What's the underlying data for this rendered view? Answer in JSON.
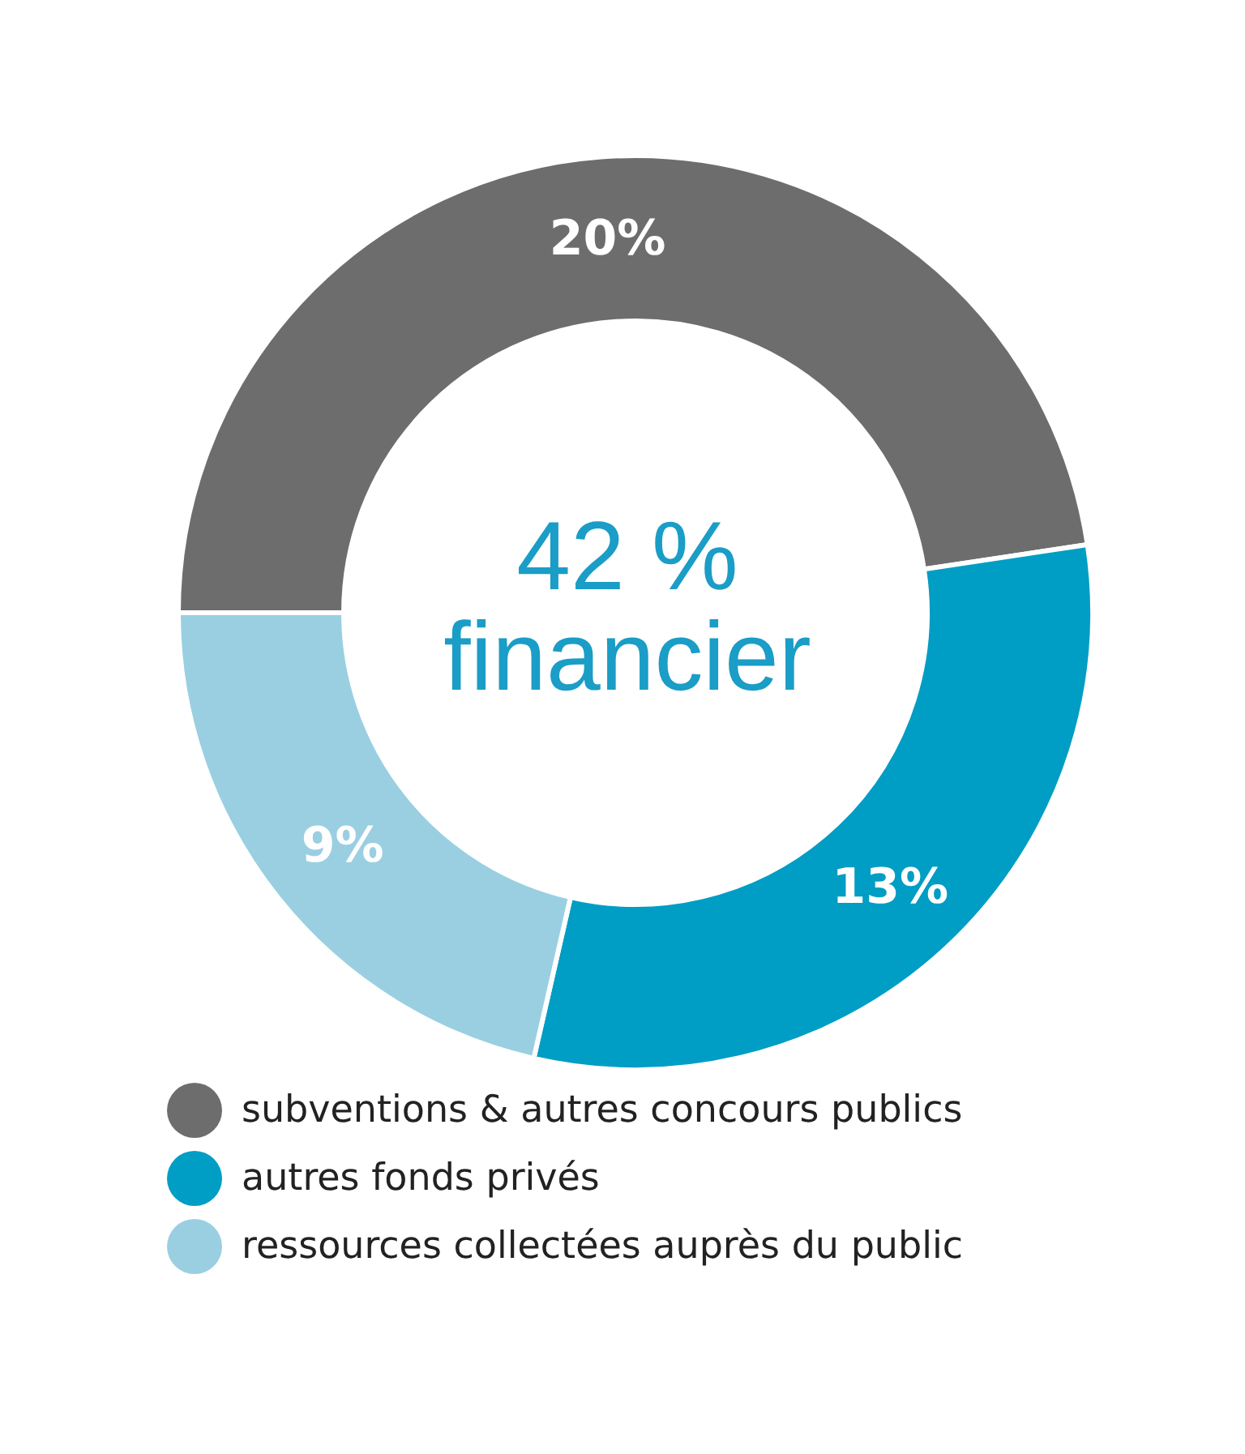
{
  "chart_data": {
    "type": "donut",
    "categories": [
      "subventions & autres concours publics",
      "autres fonds privés",
      "ressources collectées auprès du public"
    ],
    "values": [
      20,
      13,
      9
    ],
    "colors": [
      "#6d6d6d",
      "#009dc4",
      "#9acfe2"
    ],
    "value_labels": [
      "20%",
      "13%",
      "9%"
    ],
    "annotations": [
      "42 %",
      "financier"
    ],
    "legend": "bottom"
  }
}
